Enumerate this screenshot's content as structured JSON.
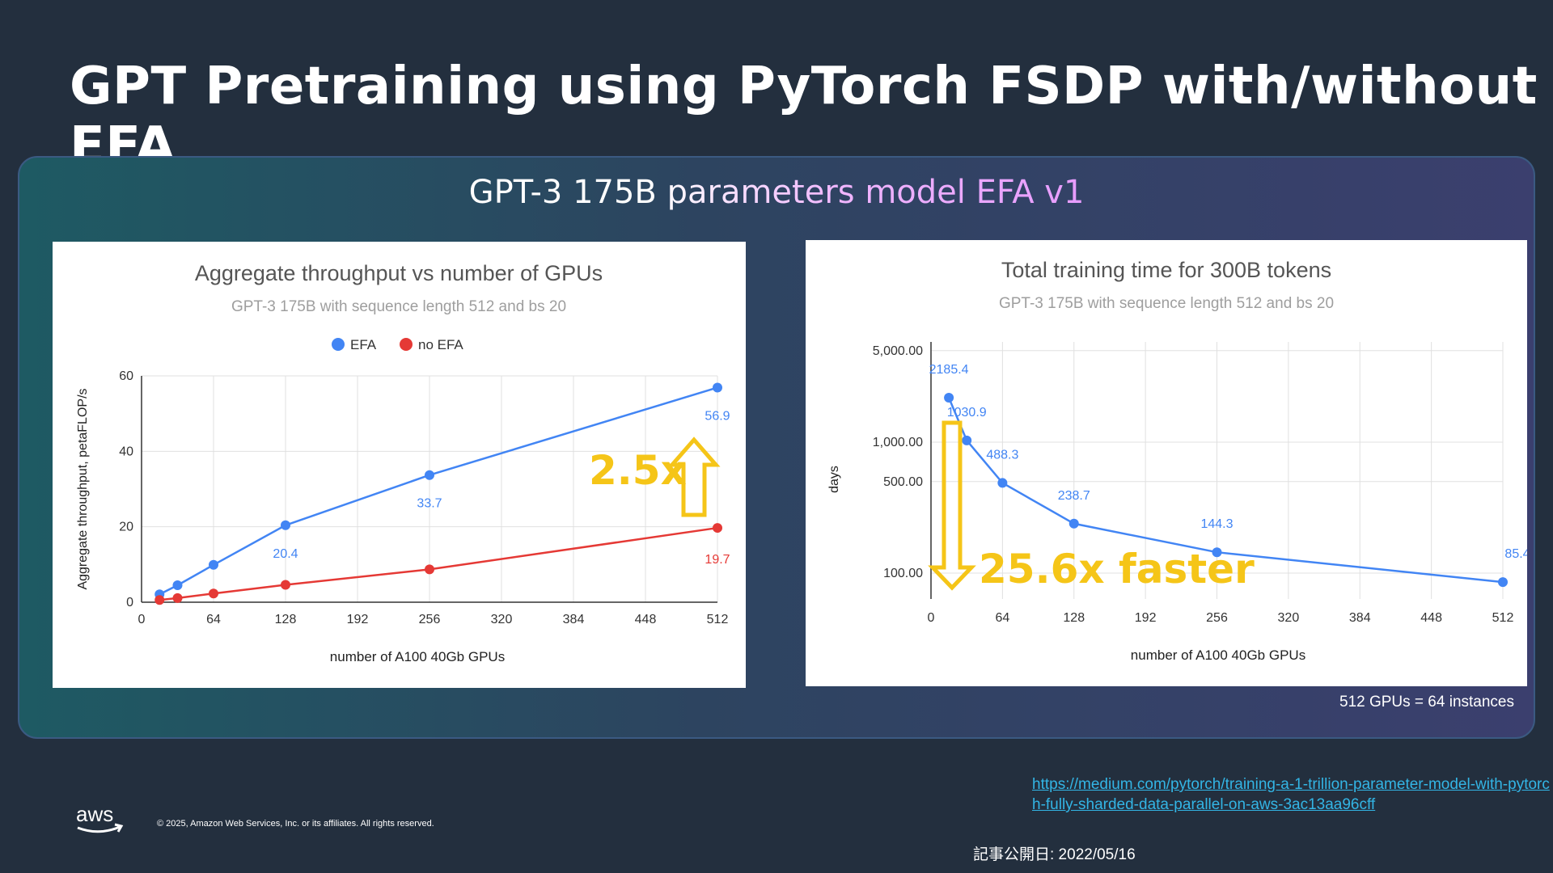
{
  "slide": {
    "title": "GPT Pretraining using PyTorch FSDP with/without EFA",
    "panel_title": "GPT-3 175B parameters model EFA v1",
    "gpus_note": "512 GPUs =  64 instances",
    "source_url": "https://medium.com/pytorch/training-a-1-trillion-parameter-model-with-pytorch-fully-sharded-data-parallel-on-aws-3ac13aa96cff",
    "published": "記事公開日: 2022/05/16",
    "copyright": "© 2025, Amazon Web Services, Inc. or its affiliates. All rights reserved.",
    "logo_text": "aws",
    "logo_icon": "aws-smile-arrow-icon"
  },
  "chart_data": [
    {
      "type": "line",
      "title": "Aggregate throughput vs number of GPUs",
      "subtitle": "GPT-3 175B with sequence length 512 and bs 20",
      "xlabel": "number of A100 40Gb GPUs",
      "ylabel": "Aggregate throughput, petaFLOP/s",
      "xlim": [
        0,
        512
      ],
      "ylim": [
        0,
        60
      ],
      "xticks": [
        0,
        64,
        128,
        192,
        256,
        320,
        384,
        448,
        512
      ],
      "yticks": [
        0,
        20,
        40,
        60
      ],
      "legend_position": "top",
      "grid": true,
      "series": [
        {
          "name": "EFA",
          "color": "#4285f4",
          "x": [
            16,
            32,
            64,
            128,
            256,
            512
          ],
          "y": [
            2.1,
            4.5,
            9.9,
            20.4,
            33.7,
            56.9
          ],
          "labels": {
            "128": "20.4",
            "256": "33.7",
            "512": "56.9"
          }
        },
        {
          "name": "no EFA",
          "color": "#e53935",
          "x": [
            16,
            32,
            64,
            128,
            256,
            512
          ],
          "y": [
            0.6,
            1.1,
            2.3,
            4.6,
            8.7,
            19.7
          ],
          "labels": {
            "512": "19.7"
          }
        }
      ],
      "annotation": {
        "text": "2.5x",
        "color": "#f5c518",
        "arrow": "up"
      }
    },
    {
      "type": "line",
      "title": "Total training time for 300B tokens",
      "subtitle": "GPT-3 175B with sequence length 512 and bs 20",
      "xlabel": "number of A100 40Gb GPUs",
      "ylabel": "days",
      "xlim": [
        0,
        512
      ],
      "log_y": true,
      "yticks": [
        100,
        500,
        1000,
        5000
      ],
      "ytick_labels": [
        "100.00",
        "500.00",
        "1,000.00",
        "5,000.00"
      ],
      "xticks": [
        0,
        64,
        128,
        192,
        256,
        320,
        384,
        448,
        512
      ],
      "grid": true,
      "series": [
        {
          "color": "#4285f4",
          "x": [
            16,
            32,
            64,
            128,
            256,
            512
          ],
          "y": [
            2185.4,
            1030.9,
            488.3,
            238.7,
            144.3,
            85.4
          ],
          "labels": [
            "2185.4",
            "1030.9",
            "488.3",
            "238.7",
            "144.3",
            "85.4"
          ]
        }
      ],
      "annotation": {
        "text": "25.6x faster",
        "color": "#f5c518",
        "arrow": "down"
      }
    }
  ]
}
